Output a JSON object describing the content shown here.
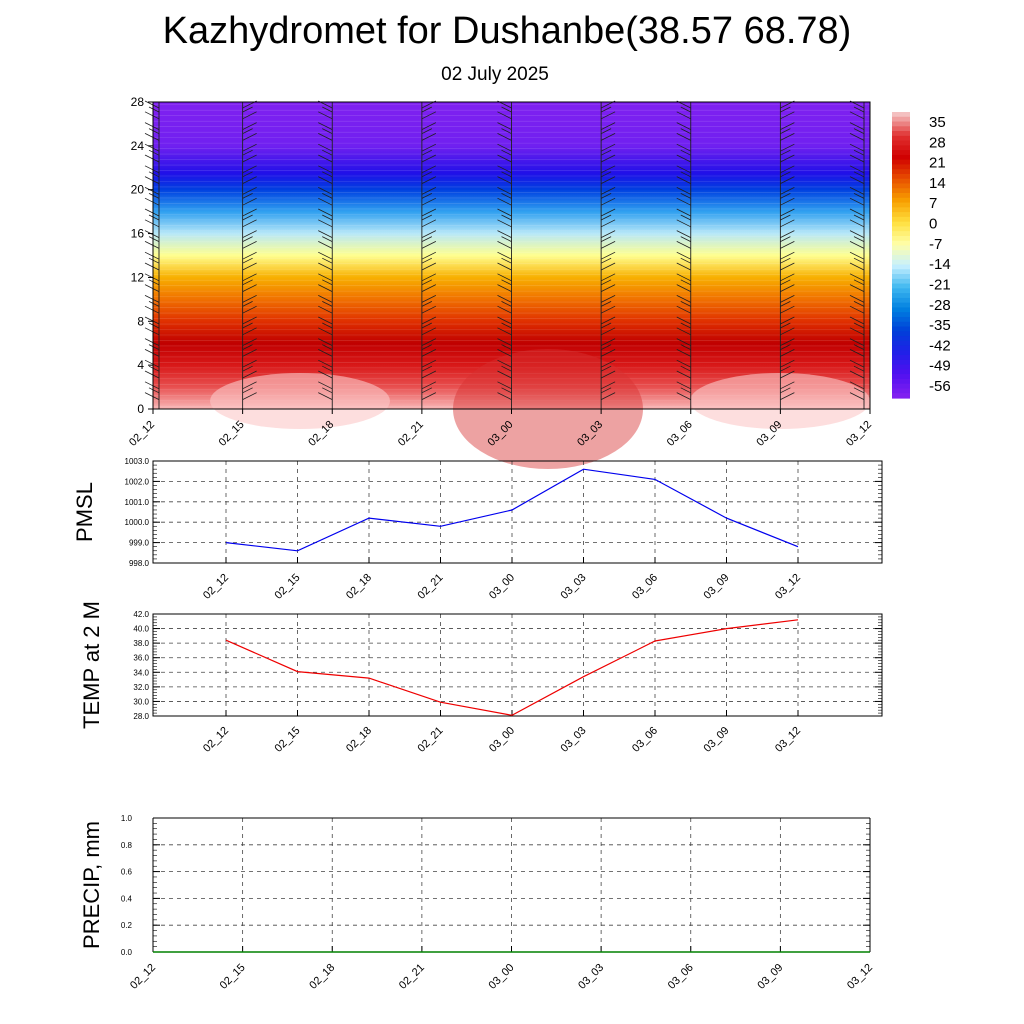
{
  "header": {
    "title": "Kazhydromet for Dushanbe(38.57 68.78)",
    "date": "02 July 2025"
  },
  "chart_data": [
    {
      "type": "heatmap",
      "title": "Kazhydromet for Dushanbe(38.57 68.78)",
      "subtitle": "02 July 2025",
      "x_ticks": [
        "02_12",
        "02_15",
        "02_18",
        "02_21",
        "03_00",
        "03_03",
        "03_06",
        "03_09",
        "03_12"
      ],
      "y_ticks": [
        0,
        4,
        8,
        12,
        16,
        20,
        24,
        28
      ],
      "ylim": [
        0,
        28
      ],
      "colorbar": {
        "labels": [
          "35",
          "28",
          "21",
          "14",
          "7",
          "0",
          "-7",
          "-14",
          "-21",
          "-28",
          "-35",
          "-42",
          "-49",
          "-56"
        ],
        "colors": [
          "#f4c0c0",
          "#e03030",
          "#d00000",
          "#e85000",
          "#f8a000",
          "#ffe040",
          "#ffffa8",
          "#c8f0ff",
          "#40b8f0",
          "#0080e0",
          "#0040d8",
          "#2020e8",
          "#5010f0",
          "#8020f0"
        ]
      },
      "temperature_profile": {
        "levels": [
          0,
          2,
          4,
          6,
          8,
          10,
          12,
          14,
          16,
          18,
          20,
          21.5,
          24,
          28
        ],
        "values": [
          31,
          27,
          21,
          16,
          11,
          4,
          -2,
          -9,
          -22,
          -36,
          -52,
          -60,
          -61,
          -61
        ],
        "colors": [
          "#f8b8b8",
          "#e85050",
          "#d81818",
          "#c00000",
          "#e03000",
          "#f07000",
          "#f8b000",
          "#ffff90",
          "#b8e8f8",
          "#30a0f0",
          "#0040e0",
          "#2010e8",
          "#7020f0",
          "#8020f0"
        ]
      },
      "wind_barbs": true
    },
    {
      "type": "line",
      "ylabel": "PMSL",
      "x": [
        "02_12",
        "02_15",
        "02_18",
        "02_21",
        "03_00",
        "03_03",
        "03_06",
        "03_09",
        "03_12"
      ],
      "ylim": [
        998.0,
        1003.0
      ],
      "y_ticks": [
        "998.0",
        "999.0",
        "1000.0",
        "1001.0",
        "1002.0",
        "1003.0"
      ],
      "series": [
        {
          "values": [
            999.0,
            998.6,
            1000.2,
            999.8,
            1000.6,
            1002.6,
            1002.1,
            1000.2,
            998.8
          ]
        }
      ],
      "color": "#0000ee",
      "grid": true
    },
    {
      "type": "line",
      "ylabel": "TEMP at 2 M",
      "x": [
        "02_12",
        "02_15",
        "02_18",
        "02_21",
        "03_00",
        "03_03",
        "03_06",
        "03_09",
        "03_12"
      ],
      "ylim": [
        28.0,
        42.0
      ],
      "y_ticks": [
        "28.0",
        "30.0",
        "32.0",
        "34.0",
        "36.0",
        "38.0",
        "40.0",
        "42.0"
      ],
      "series": [
        {
          "values": [
            38.4,
            34.1,
            33.2,
            29.9,
            28.1,
            33.4,
            38.3,
            40.0,
            41.2
          ]
        }
      ],
      "color": "#ee0000",
      "grid": true
    },
    {
      "type": "line",
      "ylabel": "PRECIP, mm",
      "x": [
        "02_12",
        "02_15",
        "02_18",
        "02_21",
        "03_00",
        "03_03",
        "03_06",
        "03_09",
        "03_12"
      ],
      "ylim": [
        0.0,
        1.0
      ],
      "y_ticks": [
        "0.0",
        "0.2",
        "0.4",
        "0.6",
        "0.8",
        "1.0"
      ],
      "series": [
        {
          "values": [
            0,
            0,
            0,
            0,
            0,
            0,
            0,
            0,
            0
          ]
        }
      ],
      "color": "#008000",
      "grid": true
    }
  ]
}
